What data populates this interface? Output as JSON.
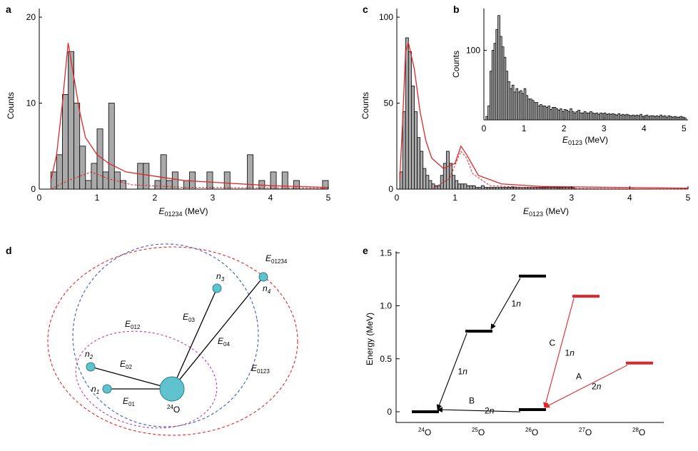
{
  "colors": {
    "bar_fill": "#a9a9a9",
    "model_red": "#e0262a",
    "diagram_cyan": "#5fc3cf",
    "ellipse_blue": "#3b5cc4",
    "ellipse_magenta": "#c03aa8"
  },
  "chart_data": [
    {
      "id": "a",
      "type": "bar",
      "panel_label": "a",
      "ylabel": "Counts",
      "xlabel": "E01234 (MeV)",
      "xlabel_parts": {
        "var": "E",
        "sub": "01234",
        "unit": " (MeV)"
      },
      "xlim": [
        0,
        5
      ],
      "ylim": [
        0,
        21
      ],
      "xticks": [
        "0",
        "1",
        "2",
        "3",
        "4",
        "5"
      ],
      "yticks": [
        "0",
        "10",
        "20"
      ],
      "bin_width": 0.1,
      "bin_start": 0.2,
      "counts": [
        2,
        4,
        11,
        16,
        10,
        5,
        1,
        3,
        7,
        2,
        10,
        2,
        1,
        0,
        0,
        3,
        3,
        0,
        1,
        4,
        1,
        2,
        0,
        1,
        2,
        0,
        0,
        2,
        0,
        0,
        2,
        0,
        0,
        0,
        4,
        0,
        1,
        0,
        2,
        0,
        2,
        0,
        1,
        0,
        0,
        0,
        0,
        1,
        1,
        0
      ],
      "fit_total": [
        {
          "x": 0.2,
          "y": 1
        },
        {
          "x": 0.3,
          "y": 4
        },
        {
          "x": 0.4,
          "y": 10
        },
        {
          "x": 0.5,
          "y": 17
        },
        {
          "x": 0.6,
          "y": 13
        },
        {
          "x": 0.7,
          "y": 9
        },
        {
          "x": 0.8,
          "y": 6
        },
        {
          "x": 0.9,
          "y": 5
        },
        {
          "x": 1.0,
          "y": 4
        },
        {
          "x": 1.2,
          "y": 3
        },
        {
          "x": 1.5,
          "y": 2
        },
        {
          "x": 2.0,
          "y": 1.5
        },
        {
          "x": 2.5,
          "y": 1
        },
        {
          "x": 3.0,
          "y": 0.8
        },
        {
          "x": 4.0,
          "y": 0.4
        },
        {
          "x": 5.0,
          "y": 0.2
        }
      ],
      "fit_component": [
        {
          "x": 0.2,
          "y": 0
        },
        {
          "x": 0.5,
          "y": 1
        },
        {
          "x": 0.9,
          "y": 2
        },
        {
          "x": 1.2,
          "y": 1.2
        },
        {
          "x": 1.6,
          "y": 0.5
        },
        {
          "x": 2.5,
          "y": 0.2
        },
        {
          "x": 5.0,
          "y": 0.1
        }
      ]
    },
    {
      "id": "c",
      "type": "bar",
      "panel_label": "c",
      "ylabel": "Counts",
      "xlabel": "E0123 (MeV)",
      "xlabel_parts": {
        "var": "E",
        "sub": "0123",
        "unit": " (MeV)"
      },
      "xlim": [
        0,
        5
      ],
      "ylim": [
        0,
        105
      ],
      "xticks": [
        "0",
        "1",
        "2",
        "3",
        "4",
        "5"
      ],
      "yticks": [
        "0",
        "50",
        "100"
      ],
      "bin_width": 0.05,
      "bin_start": 0.05,
      "counts": [
        10,
        45,
        88,
        80,
        60,
        45,
        30,
        22,
        12,
        8,
        5,
        3,
        2,
        2,
        8,
        15,
        22,
        15,
        8,
        5,
        3,
        3,
        3,
        2,
        2,
        2,
        1,
        1,
        2,
        1,
        1,
        1,
        1,
        1,
        1,
        1,
        1,
        1,
        1,
        1,
        1,
        1,
        1,
        1,
        1,
        1,
        1,
        1,
        1,
        1,
        1,
        1,
        1,
        1,
        1,
        1,
        1,
        1,
        1,
        1
      ],
      "fit_total": [
        {
          "x": 0.05,
          "y": 5
        },
        {
          "x": 0.1,
          "y": 40
        },
        {
          "x": 0.15,
          "y": 80
        },
        {
          "x": 0.2,
          "y": 85
        },
        {
          "x": 0.3,
          "y": 70
        },
        {
          "x": 0.4,
          "y": 45
        },
        {
          "x": 0.5,
          "y": 28
        },
        {
          "x": 0.6,
          "y": 18
        },
        {
          "x": 0.8,
          "y": 12
        },
        {
          "x": 1.0,
          "y": 15
        },
        {
          "x": 1.1,
          "y": 25
        },
        {
          "x": 1.2,
          "y": 20
        },
        {
          "x": 1.4,
          "y": 8
        },
        {
          "x": 1.8,
          "y": 3
        },
        {
          "x": 2.5,
          "y": 1.5
        },
        {
          "x": 5.0,
          "y": 0.5
        }
      ],
      "fit_component": [
        {
          "x": 0.6,
          "y": 0
        },
        {
          "x": 0.9,
          "y": 6
        },
        {
          "x": 1.0,
          "y": 14
        },
        {
          "x": 1.1,
          "y": 22
        },
        {
          "x": 1.2,
          "y": 18
        },
        {
          "x": 1.3,
          "y": 9
        },
        {
          "x": 1.6,
          "y": 2
        },
        {
          "x": 2.5,
          "y": 0.5
        },
        {
          "x": 5.0,
          "y": 0
        }
      ]
    },
    {
      "id": "b",
      "type": "bar",
      "panel_label": "b",
      "ylabel": "Counts",
      "xlabel": "E0123 (MeV)",
      "xlabel_parts": {
        "var": "E",
        "sub": "0123",
        "unit": " (MeV)"
      },
      "xlim": [
        0,
        5.1
      ],
      "ylim": [
        0,
        160
      ],
      "xticks": [
        "0",
        "1",
        "2",
        "3",
        "4",
        "5"
      ],
      "yticks": [
        "100"
      ],
      "bin_width": 0.05,
      "bin_start": 0.05,
      "counts": [
        5,
        20,
        70,
        100,
        110,
        130,
        150,
        120,
        105,
        90,
        70,
        55,
        45,
        50,
        40,
        45,
        40,
        42,
        38,
        45,
        35,
        30,
        30,
        28,
        25,
        25,
        20,
        22,
        20,
        20,
        18,
        20,
        15,
        18,
        18,
        16,
        14,
        16,
        12,
        15,
        14,
        12,
        16,
        12,
        10,
        12,
        14,
        10,
        10,
        12,
        10,
        10,
        12,
        10,
        9,
        10,
        8,
        10,
        9,
        10,
        8,
        9,
        8,
        9,
        8,
        7,
        9,
        7,
        8,
        7,
        8,
        7,
        6,
        7,
        6,
        7,
        6,
        8,
        5,
        6,
        7,
        5,
        6,
        6,
        5,
        6,
        5,
        7,
        5,
        6,
        4,
        6,
        5,
        4,
        5,
        4,
        4,
        5,
        4,
        3
      ]
    },
    {
      "id": "e",
      "type": "scatter",
      "panel_label": "e",
      "ylabel": "Energy (MeV)",
      "ylim": [
        -0.1,
        1.5
      ],
      "yticks": [
        "0",
        "0.5",
        "1.0",
        "1.5"
      ],
      "categories": [
        "24O",
        "25O",
        "26O",
        "27O",
        "28O"
      ],
      "category_labels": [
        {
          "mass": "24",
          "el": "O"
        },
        {
          "mass": "25",
          "el": "O"
        },
        {
          "mass": "26",
          "el": "O"
        },
        {
          "mass": "27",
          "el": "O"
        },
        {
          "mass": "28",
          "el": "O"
        }
      ],
      "levels": [
        {
          "nucleus": "24O",
          "energy": 0.0,
          "color": "black"
        },
        {
          "nucleus": "25O",
          "energy": 0.76,
          "color": "black"
        },
        {
          "nucleus": "26O",
          "energy": 1.28,
          "color": "black"
        },
        {
          "nucleus": "26O",
          "energy": 0.02,
          "color": "black"
        },
        {
          "nucleus": "27O",
          "energy": 1.09,
          "color": "red"
        },
        {
          "nucleus": "28O",
          "energy": 0.46,
          "color": "red"
        }
      ],
      "transitions": [
        {
          "from": "26O",
          "from_e": 1.28,
          "to": "25O",
          "to_e": 0.76,
          "label": "1n",
          "letter": "",
          "color": "black"
        },
        {
          "from": "25O",
          "from_e": 0.76,
          "to": "24O",
          "to_e": 0.0,
          "label": "1n",
          "letter": "",
          "color": "black"
        },
        {
          "from": "26O",
          "from_e": 0.02,
          "to": "24O",
          "to_e": 0.0,
          "label": "2n",
          "letter": "B",
          "color": "black"
        },
        {
          "from": "27O",
          "from_e": 1.09,
          "to": "26O",
          "to_e": 0.02,
          "label": "1n",
          "letter": "C",
          "color": "red"
        },
        {
          "from": "28O",
          "from_e": 0.46,
          "to": "26O",
          "to_e": 0.02,
          "label": "2n",
          "letter": "A",
          "color": "red"
        }
      ]
    }
  ],
  "diagram": {
    "panel_label": "d",
    "core": {
      "mass": "24",
      "el": "O"
    },
    "neutrons": [
      {
        "n": "n",
        "sub": "1"
      },
      {
        "n": "n",
        "sub": "2"
      },
      {
        "n": "n",
        "sub": "3"
      },
      {
        "n": "n",
        "sub": "4"
      }
    ],
    "bond_labels": [
      {
        "var": "E",
        "sub": "01"
      },
      {
        "var": "E",
        "sub": "02"
      },
      {
        "var": "E",
        "sub": "03"
      },
      {
        "var": "E",
        "sub": "04"
      }
    ],
    "ellipse_labels": [
      {
        "var": "E",
        "sub": "012"
      },
      {
        "var": "E",
        "sub": "0123"
      },
      {
        "var": "E",
        "sub": "01234"
      }
    ]
  }
}
